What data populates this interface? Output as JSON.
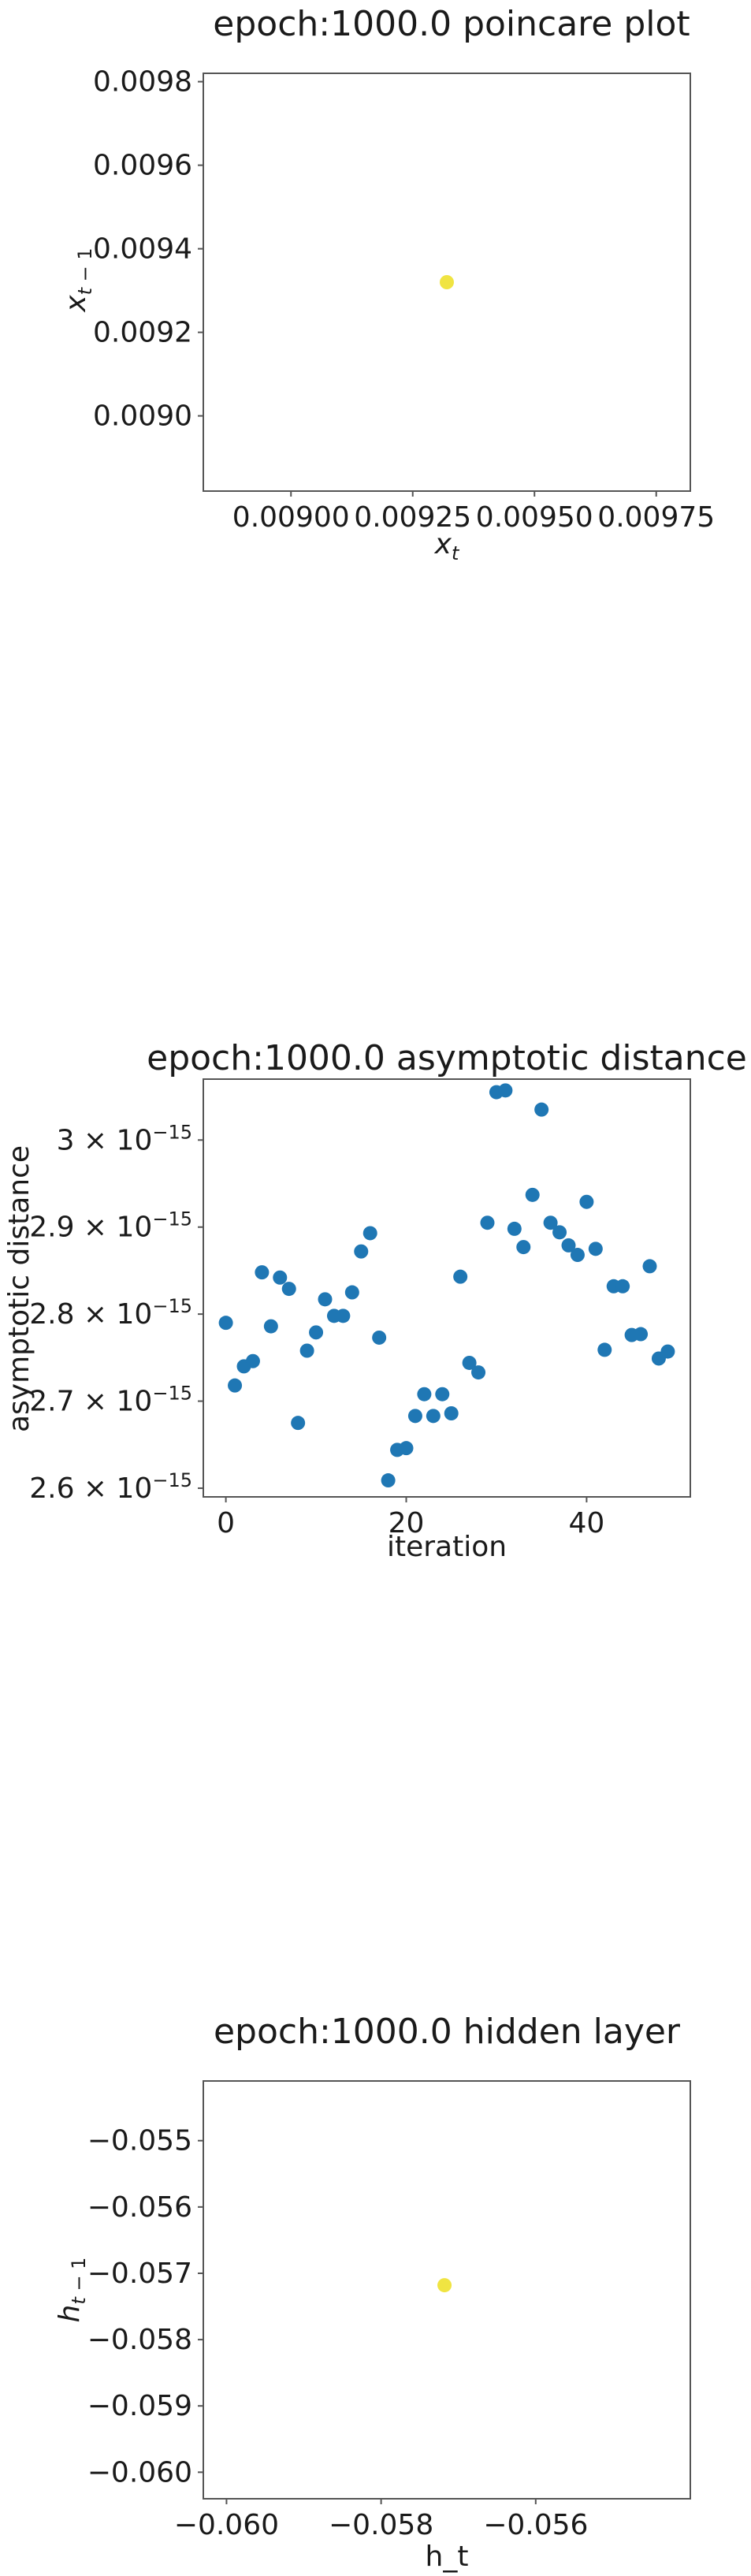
{
  "chart_data": [
    {
      "type": "scatter",
      "title": "epoch:1000.0 poincare plot",
      "xlabel": "x_t",
      "ylabel": "x_{t-1}",
      "xlim": [
        0.00882,
        0.00982
      ],
      "ylim": [
        0.00882,
        0.00982
      ],
      "xticks": [
        "0.00900",
        "0.00925",
        "0.00950",
        "0.00975"
      ],
      "xtick_values": [
        0.009,
        0.00925,
        0.0095,
        0.00975
      ],
      "yticks": [
        "0.0090",
        "0.0092",
        "0.0094",
        "0.0096",
        "0.0098"
      ],
      "ytick_values": [
        0.009,
        0.0092,
        0.0094,
        0.0096,
        0.0098
      ],
      "points": [
        {
          "x": 0.00932,
          "y": 0.00932
        }
      ],
      "point_color": "#f0e442",
      "grid": false
    },
    {
      "type": "scatter",
      "title": "epoch:1000.0 asymptotic distance",
      "xlabel": "iteration",
      "ylabel": "asymptotic distance",
      "xlim": [
        -2.5,
        51.5
      ],
      "ylim": [
        2.59e-15,
        3.07e-15
      ],
      "xticks": [
        "0",
        "20",
        "40"
      ],
      "xtick_values": [
        0,
        20,
        40
      ],
      "yticks": [
        "2.6 × 10",
        "2.7 × 10",
        "2.8 × 10",
        "2.9 × 10",
        "3 × 10"
      ],
      "yticks_exponent": "−15",
      "ytick_values": [
        2.6e-15,
        2.7e-15,
        2.8e-15,
        2.9e-15,
        3e-15
      ],
      "x": [
        0,
        1,
        2,
        3,
        4,
        5,
        6,
        7,
        8,
        9,
        10,
        11,
        12,
        13,
        14,
        15,
        16,
        17,
        18,
        19,
        20,
        21,
        22,
        23,
        24,
        25,
        26,
        27,
        28,
        29,
        30,
        31,
        32,
        33,
        34,
        35,
        36,
        37,
        38,
        39,
        40,
        41,
        42,
        43,
        44,
        45,
        46,
        47,
        48,
        49
      ],
      "y": [
        2.79e-15,
        2.718e-15,
        2.74e-15,
        2.746e-15,
        2.848e-15,
        2.786e-15,
        2.842e-15,
        2.829e-15,
        2.675e-15,
        2.758e-15,
        2.779e-15,
        2.817e-15,
        2.798e-15,
        2.798e-15,
        2.825e-15,
        2.872e-15,
        2.893e-15,
        2.773e-15,
        2.609e-15,
        2.644e-15,
        2.646e-15,
        2.683e-15,
        2.708e-15,
        2.683e-15,
        2.708e-15,
        2.686e-15,
        2.843e-15,
        2.744e-15,
        2.733e-15,
        2.905e-15,
        3.055e-15,
        3.057e-15,
        2.898e-15,
        2.877e-15,
        2.937e-15,
        3.035e-15,
        2.905e-15,
        2.894e-15,
        2.879e-15,
        2.868e-15,
        2.929e-15,
        2.875e-15,
        2.759e-15,
        2.832e-15,
        2.832e-15,
        2.776e-15,
        2.777e-15,
        2.855e-15,
        2.749e-15,
        2.757e-15
      ],
      "point_color": "#1f77b4",
      "grid": false
    },
    {
      "type": "scatter",
      "title": "epoch:1000.0 hidden layer",
      "xlabel": "h_t",
      "ylabel": "h_{t-1}",
      "xlim": [
        -0.0603,
        -0.054
      ],
      "ylim": [
        -0.0604,
        -0.0541
      ],
      "xticks": [
        "−0.060",
        "−0.058",
        "−0.056"
      ],
      "xtick_values": [
        -0.06,
        -0.058,
        -0.056
      ],
      "yticks": [
        "−0.055",
        "−0.056",
        "−0.057",
        "−0.058",
        "−0.059",
        "−0.060"
      ],
      "ytick_values": [
        -0.055,
        -0.056,
        -0.057,
        -0.058,
        -0.059,
        -0.06
      ],
      "points": [
        {
          "x": -0.05718,
          "y": -0.05718
        }
      ],
      "point_color": "#f0e442",
      "grid": false
    }
  ]
}
